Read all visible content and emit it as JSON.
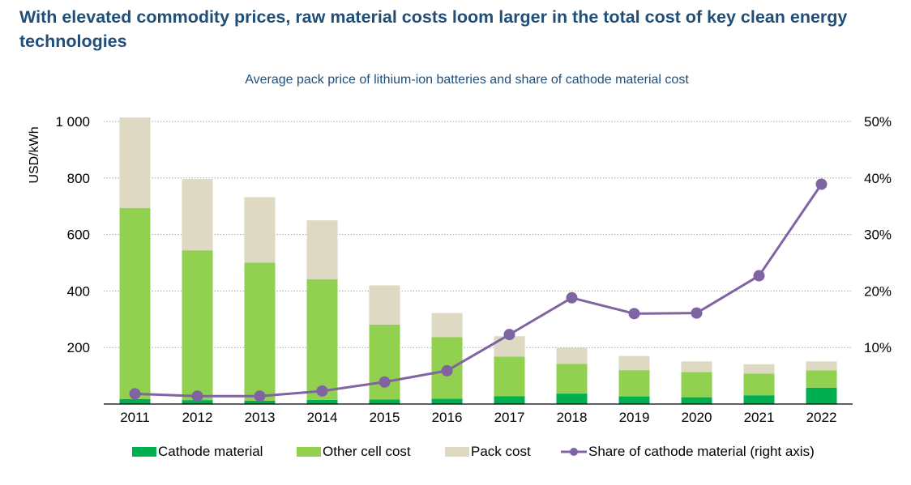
{
  "header": {
    "title": "With elevated commodity prices, raw material costs loom larger in the total cost of key clean energy technologies"
  },
  "chart_data": {
    "type": "bar",
    "subtitle": "Average pack price of lithium-ion batteries and share of cathode material cost",
    "categories": [
      "2011",
      "2012",
      "2013",
      "2014",
      "2015",
      "2016",
      "2017",
      "2018",
      "2019",
      "2020",
      "2021",
      "2022"
    ],
    "series": [
      {
        "name": "Cathode material",
        "kind": "stacked-bar",
        "color": "#00b050",
        "values": [
          18,
          14,
          12,
          15,
          16,
          19,
          28,
          37,
          27,
          24,
          31,
          58
        ]
      },
      {
        "name": "Other cell cost",
        "kind": "stacked-bar",
        "color": "#92d050",
        "values": [
          676,
          530,
          488,
          427,
          265,
          218,
          140,
          105,
          93,
          89,
          77,
          61
        ]
      },
      {
        "name": "Pack cost",
        "kind": "stacked-bar",
        "color": "#ddd9c3",
        "values": [
          320,
          252,
          232,
          208,
          139,
          85,
          72,
          57,
          50,
          38,
          33,
          32
        ]
      },
      {
        "name": "Share of cathode material (right axis)",
        "kind": "line",
        "axis": "right",
        "color": "#8064a2",
        "values": [
          1.8,
          1.4,
          1.4,
          2.3,
          3.9,
          5.9,
          12.3,
          18.8,
          16.0,
          16.1,
          22.7,
          38.9
        ]
      }
    ],
    "ylabel": "USD/kWh",
    "ylim": [
      0,
      1000
    ],
    "yticks": [
      200,
      400,
      600,
      800,
      1000
    ],
    "ytick_labels": [
      "200",
      "400",
      "600",
      "800",
      "1 000"
    ],
    "y2lim": [
      0,
      50
    ],
    "y2ticks": [
      10,
      20,
      30,
      40,
      50
    ],
    "y2tick_labels": [
      "10%",
      "20%",
      "30%",
      "40%",
      "50%"
    ],
    "grid": true,
    "legend_position": "bottom"
  }
}
